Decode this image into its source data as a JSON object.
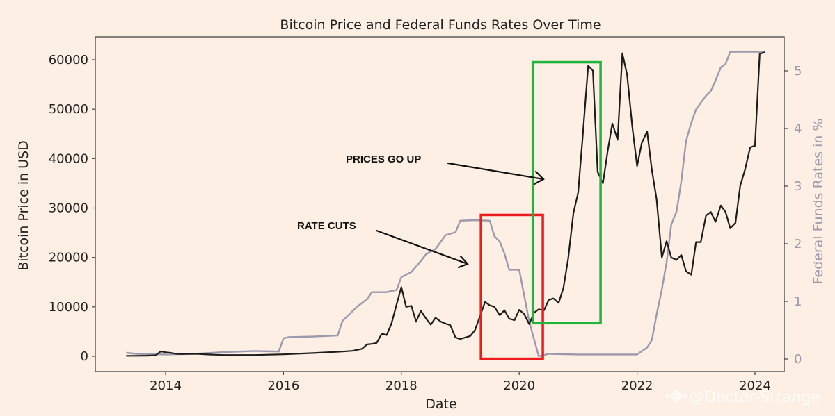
{
  "chart_data": {
    "type": "line",
    "title": "Bitcoin Price and Federal Funds Rates Over Time",
    "xlabel": "Date",
    "ylabel": "Bitcoin Price in USD",
    "ylabel_right": "Federal Funds Rates in %",
    "xlim": [
      2012.8,
      2024.6
    ],
    "ylim": [
      -2500,
      63000
    ],
    "ylim_right": [
      -0.22,
      5.3
    ],
    "x_ticks": [
      2014,
      2016,
      2018,
      2020,
      2022,
      2024
    ],
    "x_tick_labels": [
      "2014",
      "2016",
      "2018",
      "2020",
      "2022",
      "2024"
    ],
    "y_ticks": [
      0,
      10000,
      20000,
      30000,
      40000,
      50000,
      60000
    ],
    "y_tick_labels": [
      "0",
      "10000",
      "20000",
      "30000",
      "40000",
      "50000",
      "60000"
    ],
    "y_right_ticks": [
      0,
      1,
      2,
      3,
      4,
      5
    ],
    "y_right_tick_labels": [
      "0",
      "1",
      "2",
      "3",
      "4",
      "5"
    ],
    "grid": false,
    "series": [
      {
        "name": "Bitcoin Price",
        "axis": "left",
        "color": "#1c1c1c",
        "x": [
          2013.33,
          2013.5,
          2013.67,
          2013.83,
          2013.92,
          2014.0,
          2014.08,
          2014.17,
          2014.25,
          2014.5,
          2014.75,
          2015.0,
          2015.5,
          2016.0,
          2016.5,
          2017.0,
          2017.17,
          2017.33,
          2017.42,
          2017.5,
          2017.58,
          2017.67,
          2017.75,
          2017.83,
          2017.92,
          2018.0,
          2018.08,
          2018.17,
          2018.25,
          2018.33,
          2018.42,
          2018.5,
          2018.58,
          2018.67,
          2018.75,
          2018.83,
          2018.92,
          2019.0,
          2019.08,
          2019.17,
          2019.25,
          2019.33,
          2019.42,
          2019.5,
          2019.58,
          2019.67,
          2019.75,
          2019.83,
          2019.92,
          2020.0,
          2020.08,
          2020.17,
          2020.25,
          2020.33,
          2020.42,
          2020.5,
          2020.58,
          2020.67,
          2020.75,
          2020.83,
          2020.92,
          2021.0,
          2021.08,
          2021.17,
          2021.25,
          2021.33,
          2021.42,
          2021.5,
          2021.58,
          2021.67,
          2021.75,
          2021.83,
          2021.92,
          2022.0,
          2022.08,
          2022.17,
          2022.25,
          2022.33,
          2022.42,
          2022.5,
          2022.58,
          2022.67,
          2022.75,
          2022.83,
          2022.92,
          2023.0,
          2023.08,
          2023.17,
          2023.25,
          2023.33,
          2023.42,
          2023.5,
          2023.58,
          2023.67,
          2023.75,
          2023.83,
          2023.92,
          2024.0,
          2024.08,
          2024.17
        ],
        "values": [
          100,
          100,
          120,
          200,
          1000,
          800,
          700,
          500,
          450,
          500,
          350,
          250,
          250,
          400,
          650,
          950,
          1100,
          1500,
          2400,
          2500,
          2700,
          4600,
          4300,
          6500,
          10500,
          14000,
          10000,
          10200,
          7000,
          9200,
          7600,
          6400,
          7800,
          7000,
          6600,
          6300,
          3800,
          3500,
          3800,
          4100,
          5300,
          8000,
          11000,
          10300,
          10000,
          8300,
          9300,
          7600,
          7300,
          9400,
          8600,
          6500,
          8800,
          9500,
          9300,
          11400,
          11700,
          10800,
          13800,
          19700,
          29000,
          33100,
          45000,
          58800,
          57800,
          37300,
          35000,
          41500,
          47100,
          43800,
          61300,
          57000,
          46300,
          38500,
          43200,
          45500,
          37700,
          31800,
          20000,
          23300,
          20000,
          19500,
          20500,
          17200,
          16500,
          23100,
          23100,
          28500,
          29200,
          27200,
          30500,
          29200,
          25900,
          27000,
          34500,
          37700,
          42300,
          42600,
          61200,
          61500
        ]
      },
      {
        "name": "Federal Funds Rate",
        "axis": "right",
        "color": "#9c98ad",
        "x": [
          2013.33,
          2013.5,
          2014.0,
          2014.5,
          2015.0,
          2015.5,
          2015.92,
          2016.0,
          2016.08,
          2016.5,
          2016.92,
          2017.0,
          2017.25,
          2017.42,
          2017.5,
          2017.75,
          2017.92,
          2018.0,
          2018.17,
          2018.33,
          2018.42,
          2018.58,
          2018.75,
          2018.92,
          2019.0,
          2019.25,
          2019.5,
          2019.58,
          2019.67,
          2019.75,
          2019.83,
          2019.92,
          2020.0,
          2020.17,
          2020.33,
          2020.5,
          2021.0,
          2021.5,
          2022.0,
          2022.17,
          2022.25,
          2022.33,
          2022.42,
          2022.5,
          2022.58,
          2022.67,
          2022.75,
          2022.83,
          2022.92,
          2023.0,
          2023.17,
          2023.25,
          2023.33,
          2023.42,
          2023.5,
          2023.58,
          2023.67,
          2024.0,
          2024.17
        ],
        "values": [
          0.11,
          0.09,
          0.08,
          0.09,
          0.12,
          0.14,
          0.13,
          0.36,
          0.38,
          0.39,
          0.41,
          0.66,
          0.91,
          1.04,
          1.16,
          1.16,
          1.2,
          1.42,
          1.51,
          1.7,
          1.82,
          1.91,
          2.15,
          2.2,
          2.4,
          2.41,
          2.4,
          2.13,
          2.04,
          1.83,
          1.55,
          1.55,
          1.55,
          0.65,
          0.05,
          0.09,
          0.08,
          0.08,
          0.08,
          0.2,
          0.33,
          0.77,
          1.21,
          1.68,
          2.33,
          2.56,
          3.08,
          3.78,
          4.1,
          4.33,
          4.57,
          4.65,
          4.83,
          5.06,
          5.12,
          5.33,
          5.33,
          5.33,
          5.33
        ]
      }
    ],
    "annotations": [
      {
        "text": "PRICES GO UP",
        "type": "arrow-label"
      },
      {
        "text": "RATE CUTS",
        "type": "arrow-label"
      }
    ],
    "highlight_boxes": [
      {
        "name": "rate-cuts-box",
        "color": "#ee1c1c",
        "x_range": [
          2019.35,
          2020.4
        ],
        "y_range": [
          -500,
          28600
        ]
      },
      {
        "name": "prices-go-up-box",
        "color": "#1db53a",
        "x_range": [
          2020.23,
          2021.38
        ],
        "y_range": [
          6700,
          59500
        ]
      }
    ],
    "legend": "none"
  },
  "watermark": {
    "text": "@Doctor-Strange",
    "icon": "binance-diamond-icon"
  }
}
